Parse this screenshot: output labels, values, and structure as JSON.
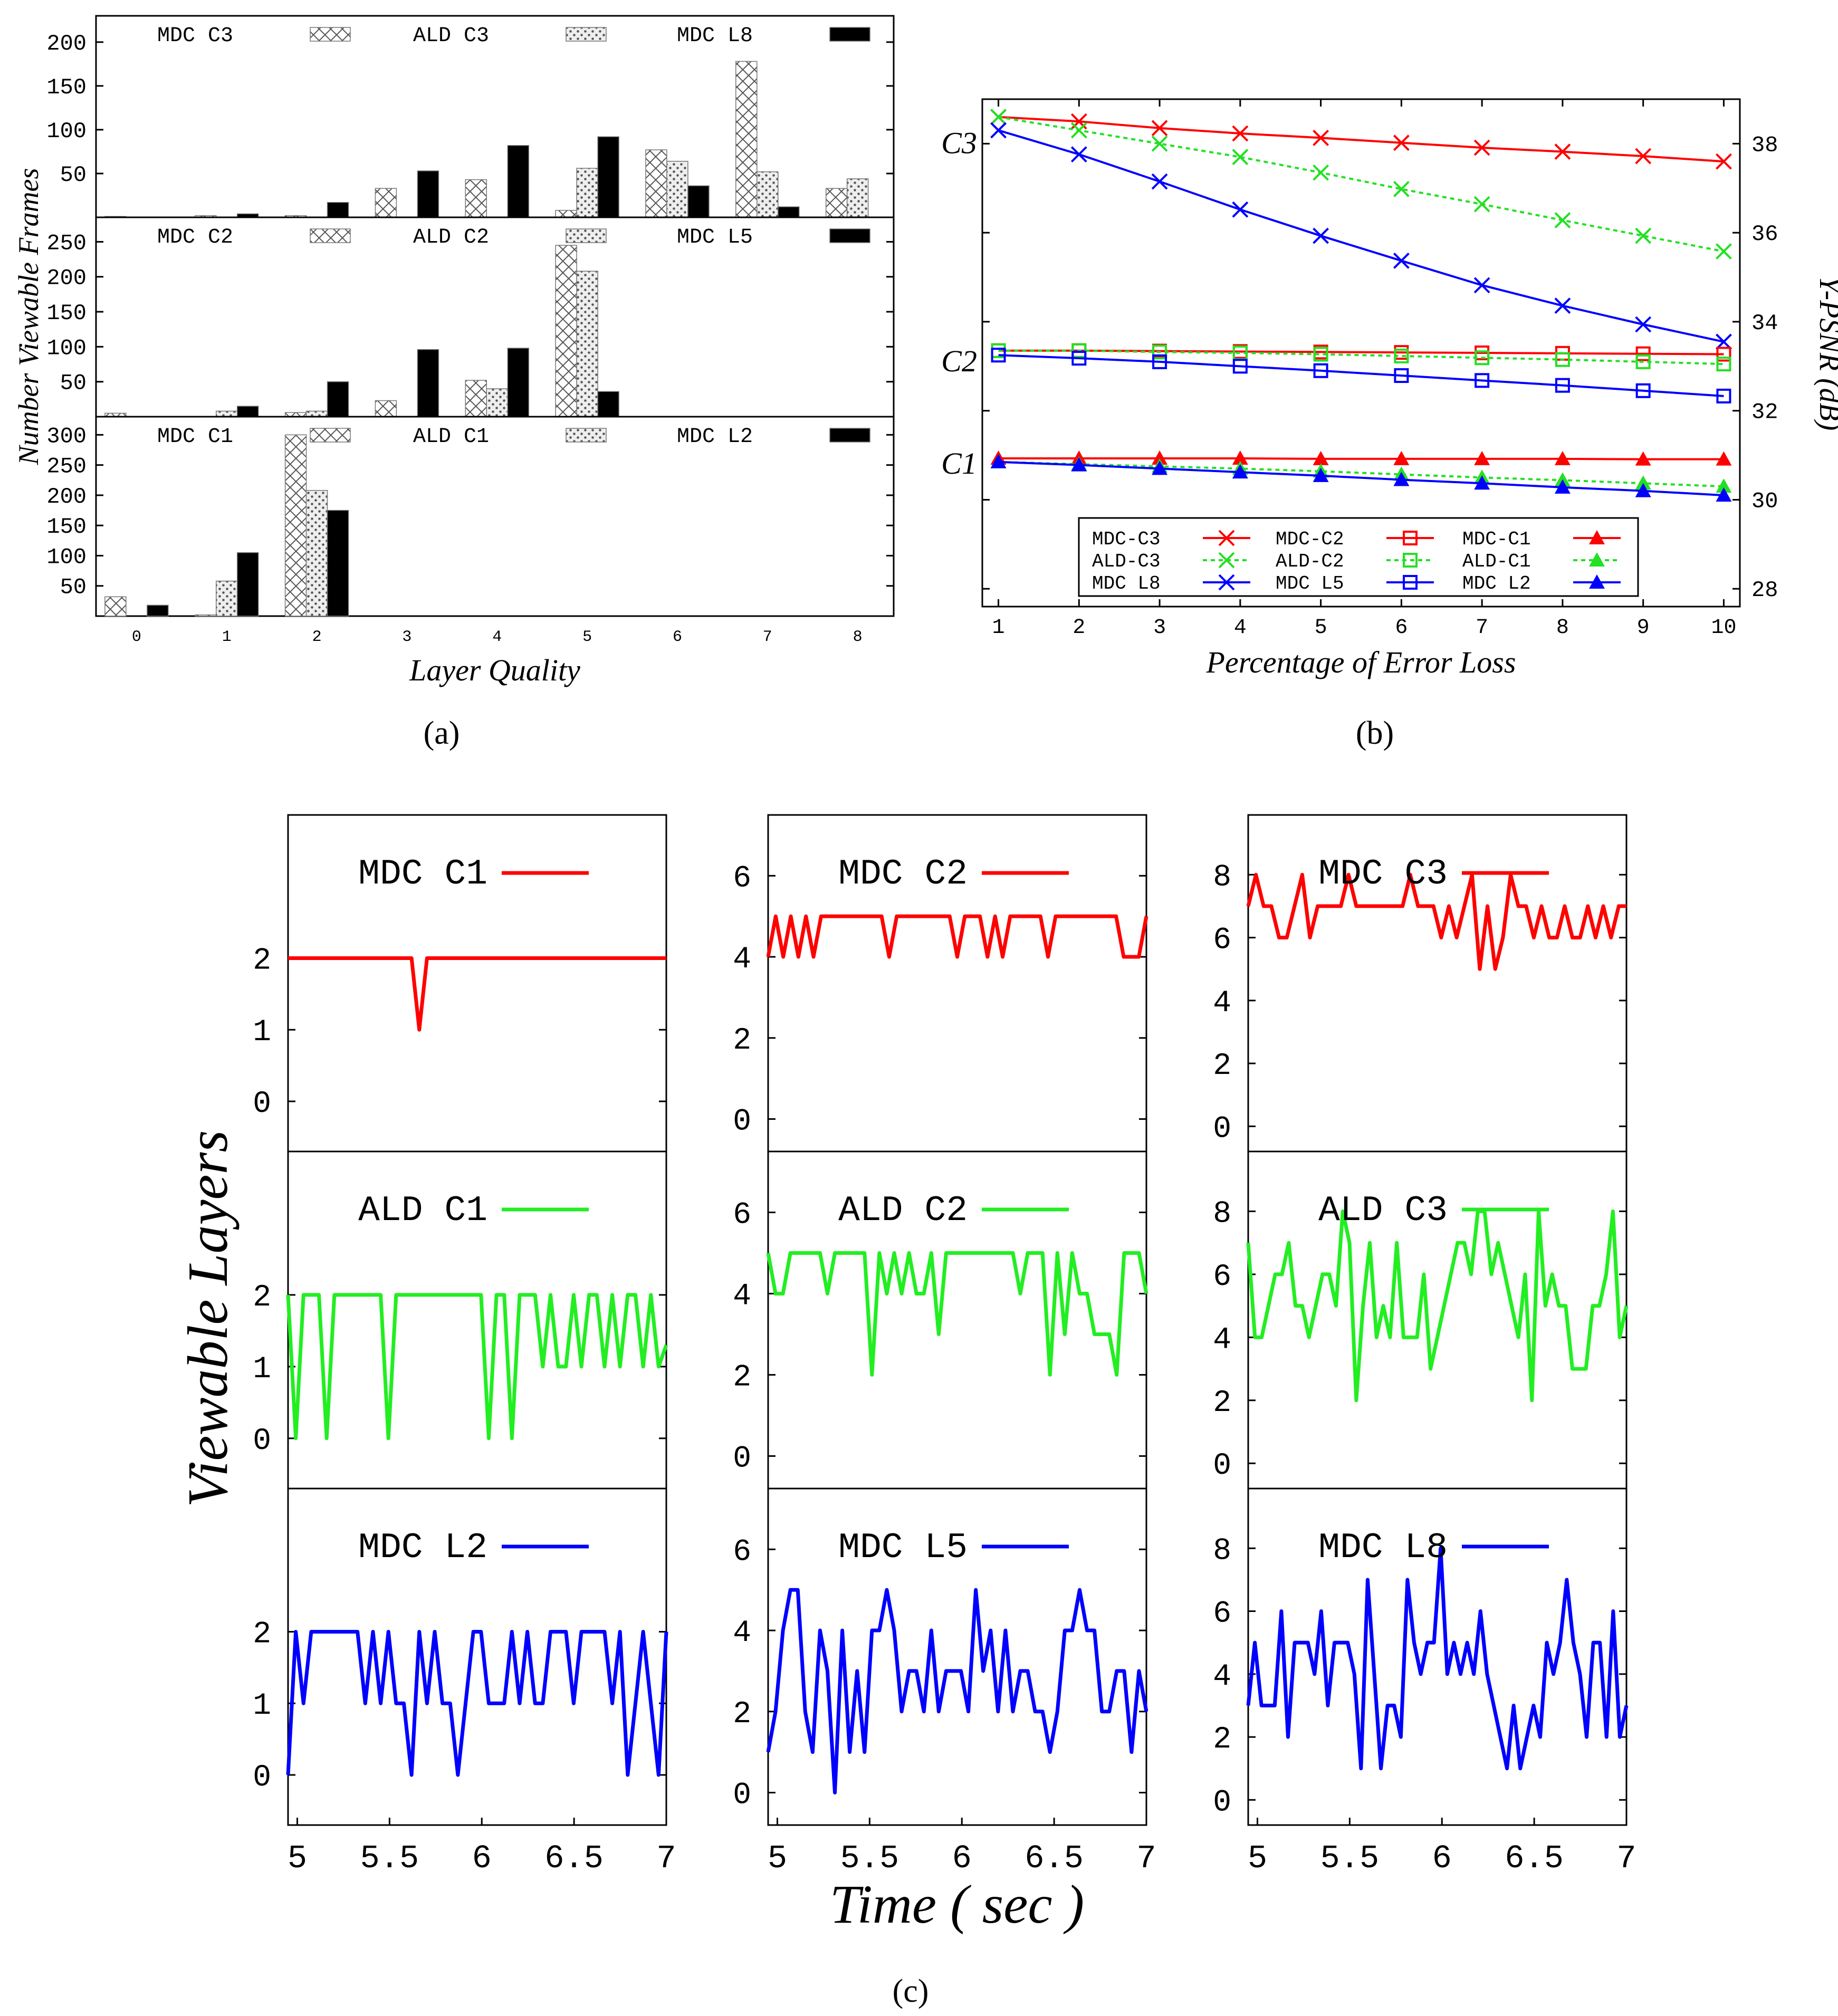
{
  "panel_labels": [
    "(a)",
    "(b)",
    "(c)"
  ],
  "chart_data": [
    {
      "id": "a",
      "type": "bar",
      "xlabel": "Layer Quality",
      "ylabel": "Number Viewable Frames",
      "categories": [
        "0",
        "1",
        "2",
        "3",
        "4",
        "5",
        "6",
        "7",
        "8"
      ],
      "subplots": [
        {
          "yticks": [
            50,
            100,
            150,
            200
          ],
          "ylim": [
            0,
            230
          ],
          "series": [
            {
              "name": "MDC C3",
              "pattern": "cross",
              "values": [
                1,
                2,
                2,
                33,
                43,
                8,
                77,
                178,
                33
              ]
            },
            {
              "name": "ALD C3",
              "pattern": "dots",
              "values": [
                0,
                0,
                0,
                0,
                0,
                56,
                64,
                52,
                44
              ]
            },
            {
              "name": "MDC L8",
              "pattern": "solid",
              "values": [
                0,
                4,
                17,
                53,
                82,
                92,
                36,
                12,
                0
              ]
            }
          ]
        },
        {
          "yticks": [
            50,
            100,
            150,
            200,
            250
          ],
          "ylim": [
            0,
            285
          ],
          "series": [
            {
              "name": "MDC C2",
              "pattern": "cross",
              "values": [
                5,
                0,
                6,
                23,
                52,
                245,
                0,
                0,
                0
              ]
            },
            {
              "name": "ALD C2",
              "pattern": "dots",
              "values": [
                0,
                8,
                8,
                0,
                40,
                208,
                0,
                0,
                0
              ]
            },
            {
              "name": "MDC L5",
              "pattern": "solid",
              "values": [
                0,
                15,
                50,
                96,
                98,
                36,
                0,
                0,
                0
              ]
            }
          ]
        },
        {
          "yticks": [
            50,
            100,
            150,
            200,
            250,
            300
          ],
          "ylim": [
            0,
            330
          ],
          "series": [
            {
              "name": "MDC C1",
              "pattern": "cross",
              "values": [
                32,
                2,
                300,
                0,
                0,
                0,
                0,
                0,
                0
              ]
            },
            {
              "name": "ALD C1",
              "pattern": "dots",
              "values": [
                0,
                58,
                208,
                0,
                0,
                0,
                0,
                0,
                0
              ]
            },
            {
              "name": "MDC L2",
              "pattern": "solid",
              "values": [
                18,
                105,
                175,
                0,
                0,
                0,
                0,
                0,
                0
              ]
            }
          ]
        }
      ]
    },
    {
      "id": "b",
      "type": "line",
      "xlabel": "Percentage of Error Loss",
      "ylabel": "Y-PSNR (dB)",
      "x": [
        1,
        2,
        3,
        4,
        5,
        6,
        7,
        8,
        9,
        10
      ],
      "xlim": [
        0.8,
        10.2
      ],
      "ylim": [
        27.6,
        39.0
      ],
      "yticks": [
        28,
        30,
        32,
        34,
        36,
        38
      ],
      "group_labels": [
        {
          "text": "C3",
          "y": 38.0
        },
        {
          "text": "C2",
          "y": 33.1
        },
        {
          "text": "C1",
          "y": 30.8
        }
      ],
      "series": [
        {
          "name": "MDC-C3",
          "color": "#ff0000",
          "marker": "x",
          "dash": "solid",
          "values": [
            38.6,
            38.5,
            38.35,
            38.23,
            38.13,
            38.02,
            37.91,
            37.82,
            37.72,
            37.6
          ]
        },
        {
          "name": "ALD-C3",
          "color": "#22e022",
          "marker": "x",
          "dash": "dotted",
          "values": [
            38.6,
            38.3,
            38.0,
            37.7,
            37.35,
            36.98,
            36.64,
            36.28,
            35.93,
            35.58
          ]
        },
        {
          "name": "MDC L8",
          "color": "#0000ff",
          "marker": "x",
          "dash": "solid",
          "values": [
            38.3,
            37.76,
            37.15,
            36.52,
            35.93,
            35.37,
            34.82,
            34.36,
            33.94,
            33.55
          ]
        },
        {
          "name": "MDC-C2",
          "color": "#ff0000",
          "marker": "square",
          "dash": "solid",
          "values": [
            33.35,
            33.35,
            33.34,
            33.33,
            33.32,
            33.31,
            33.3,
            33.29,
            33.28,
            33.27
          ]
        },
        {
          "name": "ALD-C2",
          "color": "#22e022",
          "marker": "square",
          "dash": "dotted",
          "values": [
            33.35,
            33.35,
            33.32,
            33.3,
            33.27,
            33.23,
            33.19,
            33.15,
            33.1,
            33.05
          ]
        },
        {
          "name": "MDC L5",
          "color": "#0000ff",
          "marker": "square",
          "dash": "solid",
          "values": [
            33.25,
            33.18,
            33.1,
            33.0,
            32.9,
            32.79,
            32.68,
            32.57,
            32.45,
            32.33
          ]
        },
        {
          "name": "MDC-C1",
          "color": "#ff0000",
          "marker": "triangle",
          "dash": "solid",
          "values": [
            30.93,
            30.93,
            30.93,
            30.93,
            30.92,
            30.92,
            30.92,
            30.92,
            30.91,
            30.91
          ]
        },
        {
          "name": "ALD-C1",
          "color": "#22e022",
          "marker": "triangle",
          "dash": "dotted",
          "values": [
            30.85,
            30.8,
            30.75,
            30.7,
            30.64,
            30.57,
            30.5,
            30.44,
            30.37,
            30.3
          ]
        },
        {
          "name": "MDC L2",
          "color": "#0000ff",
          "marker": "triangle",
          "dash": "solid",
          "values": [
            30.85,
            30.78,
            30.7,
            30.62,
            30.54,
            30.45,
            30.37,
            30.28,
            30.2,
            30.1
          ]
        }
      ]
    },
    {
      "id": "c",
      "type": "line",
      "xlabel": "Time ( sec )",
      "ylabel": "Viewable Layers",
      "xticks": [
        "5",
        "5.5",
        "6",
        "6.5",
        "7"
      ],
      "xlim": [
        4.95,
        7.0
      ],
      "columns": [
        {
          "ylim": [
            -0.7,
            4.0
          ],
          "yticks": [
            0,
            1,
            2
          ],
          "rows": [
            {
              "name": "MDC C1",
              "color": "#ff0000",
              "values": [
                2,
                2,
                2,
                2,
                2,
                2,
                2,
                2,
                2,
                2,
                2,
                2,
                2,
                2,
                2,
                2,
                2,
                1,
                2,
                2,
                2,
                2,
                2,
                2,
                2,
                2,
                2,
                2,
                2,
                2,
                2,
                2,
                2,
                2,
                2,
                2,
                2,
                2,
                2,
                2,
                2,
                2,
                2,
                2,
                2,
                2,
                2,
                2,
                2,
                2
              ]
            },
            {
              "name": "ALD C1",
              "color": "#22ee22",
              "values": [
                2,
                0,
                2,
                2,
                2,
                0,
                2,
                2,
                2,
                2,
                2,
                2,
                2,
                0,
                2,
                2,
                2,
                2,
                2,
                2,
                2,
                2,
                2,
                2,
                2,
                2,
                0,
                2,
                2,
                0,
                2,
                2,
                2,
                1,
                2,
                1,
                1,
                2,
                1,
                2,
                2,
                1,
                2,
                1,
                2,
                2,
                1,
                2,
                1,
                1.3
              ]
            },
            {
              "name": "MDC L2",
              "color": "#0000ff",
              "values": [
                0,
                2,
                1,
                2,
                2,
                2,
                2,
                2,
                2,
                2,
                1,
                2,
                1,
                2,
                1,
                1,
                0,
                2,
                1,
                2,
                1,
                1,
                0,
                1,
                2,
                2,
                1,
                1,
                1,
                2,
                1,
                2,
                1,
                1,
                2,
                2,
                2,
                1,
                2,
                2,
                2,
                2,
                1,
                2,
                0,
                1,
                2,
                1,
                0,
                2
              ]
            }
          ]
        },
        {
          "ylim": [
            -0.8,
            7.5
          ],
          "yticks": [
            0,
            2,
            4,
            6
          ],
          "rows": [
            {
              "name": "MDC C2",
              "color": "#ff0000",
              "values": [
                4,
                5,
                4,
                5,
                4,
                5,
                4,
                5,
                5,
                5,
                5,
                5,
                5,
                5,
                5,
                5,
                4,
                5,
                5,
                5,
                5,
                5,
                5,
                5,
                5,
                4,
                5,
                5,
                5,
                4,
                5,
                4,
                5,
                5,
                5,
                5,
                5,
                4,
                5,
                5,
                5,
                5,
                5,
                5,
                5,
                5,
                5,
                4,
                4,
                4,
                5
              ]
            },
            {
              "name": "ALD C2",
              "color": "#22ee22",
              "values": [
                5,
                4,
                4,
                5,
                5,
                5,
                5,
                5,
                4,
                5,
                5,
                5,
                5,
                5,
                2,
                5,
                4,
                5,
                4,
                5,
                4,
                4,
                5,
                3,
                5,
                5,
                5,
                5,
                5,
                5,
                5,
                5,
                5,
                5,
                4,
                5,
                5,
                5,
                2,
                5,
                3,
                5,
                4,
                4,
                3,
                3,
                3,
                2,
                5,
                5,
                5,
                4
              ]
            },
            {
              "name": "MDC L5",
              "color": "#0000ff",
              "values": [
                1,
                2,
                4,
                5,
                5,
                2,
                1,
                4,
                3,
                0,
                4,
                1,
                3,
                1,
                4,
                4,
                5,
                4,
                2,
                3,
                3,
                2,
                4,
                2,
                3,
                3,
                3,
                2,
                5,
                3,
                4,
                2,
                4,
                2,
                3,
                3,
                2,
                2,
                1,
                2,
                4,
                4,
                5,
                4,
                4,
                2,
                2,
                3,
                3,
                1,
                3,
                2
              ]
            }
          ]
        },
        {
          "ylim": [
            -0.8,
            9.9
          ],
          "yticks": [
            0,
            2,
            4,
            6,
            8
          ],
          "rows": [
            {
              "name": "MDC C3",
              "color": "#ff0000",
              "values": [
                7,
                8,
                7,
                7,
                6,
                6,
                7,
                8,
                6,
                7,
                7,
                7,
                7,
                8,
                7,
                7,
                7,
                7,
                7,
                7,
                7,
                8,
                7,
                7,
                7,
                6,
                7,
                6,
                7,
                8,
                5,
                7,
                5,
                6,
                8,
                7,
                7,
                6,
                7,
                6,
                6,
                7,
                6,
                6,
                7,
                6,
                7,
                6,
                7,
                7
              ]
            },
            {
              "name": "ALD C3",
              "color": "#22ee22",
              "values": [
                7,
                4,
                4,
                5,
                6,
                6,
                7,
                5,
                5,
                4,
                5,
                6,
                6,
                5,
                8,
                7,
                2,
                5,
                7,
                4,
                5,
                4,
                7,
                4,
                4,
                4,
                6,
                3,
                4,
                5,
                6,
                7,
                7,
                6,
                8,
                8,
                6,
                7,
                6,
                5,
                4,
                6,
                2,
                8,
                5,
                6,
                5,
                5,
                3,
                3,
                3,
                5,
                5,
                6,
                8,
                4,
                5
              ]
            },
            {
              "name": "MDC L8",
              "color": "#0000ff",
              "values": [
                3,
                5,
                3,
                3,
                3,
                6,
                2,
                5,
                5,
                5,
                4,
                6,
                3,
                5,
                5,
                5,
                4,
                1,
                7,
                4,
                1,
                3,
                3,
                2,
                7,
                5,
                4,
                5,
                5,
                8,
                4,
                5,
                4,
                5,
                4,
                6,
                4,
                3,
                2,
                1,
                3,
                1,
                2,
                3,
                2,
                5,
                4,
                5,
                7,
                5,
                4,
                2,
                5,
                5,
                2,
                6,
                2,
                3
              ]
            }
          ]
        }
      ]
    }
  ]
}
